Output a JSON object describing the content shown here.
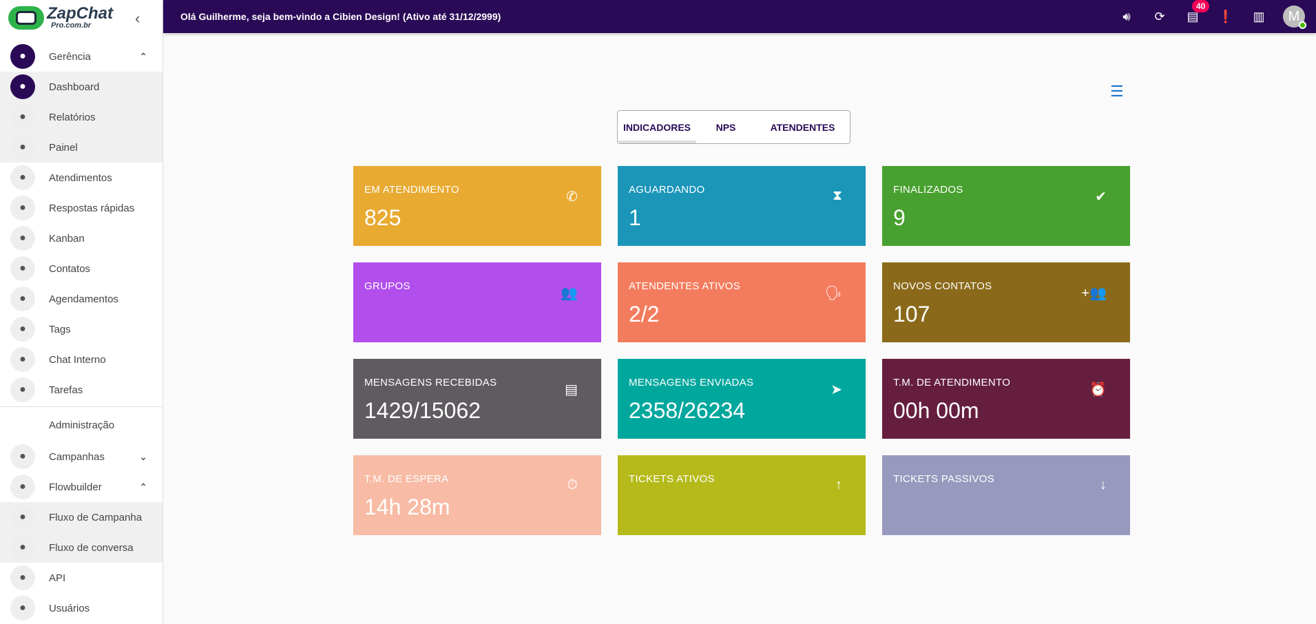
{
  "logo": {
    "name": "ZapChat",
    "sub": "Pro.com.br"
  },
  "sidebar": {
    "items": [
      {
        "label": "Gerência",
        "icon": "dashboard-icon",
        "chev": "⌃",
        "type": "top",
        "dark": true
      },
      {
        "label": "Dashboard",
        "icon": "grid-dashboard-icon",
        "type": "sub",
        "dark": true
      },
      {
        "label": "Relatórios",
        "icon": "document-icon",
        "type": "sub"
      },
      {
        "label": "Painel",
        "icon": "table-icon",
        "type": "sub"
      },
      {
        "label": "Atendimentos",
        "icon": "whatsapp-icon"
      },
      {
        "label": "Respostas rápidas",
        "icon": "flash-icon"
      },
      {
        "label": "Kanban",
        "icon": "kanban-icon"
      },
      {
        "label": "Contatos",
        "icon": "contacts-icon"
      },
      {
        "label": "Agendamentos",
        "icon": "clock-icon"
      },
      {
        "label": "Tags",
        "icon": "tag-icon"
      },
      {
        "label": "Chat Interno",
        "icon": "forum-icon"
      },
      {
        "label": "Tarefas",
        "icon": "calendar-check-icon"
      }
    ],
    "section": "Administração",
    "admin_items": [
      {
        "label": "Campanhas",
        "icon": "calendar-check-icon",
        "chev": "⌄"
      },
      {
        "label": "Flowbuilder",
        "icon": "webhook-icon",
        "chev": "⌃"
      },
      {
        "label": "Fluxo de Campanha",
        "icon": "calendar-check-icon",
        "type": "sub"
      },
      {
        "label": "Fluxo de conversa",
        "icon": "flow-icon",
        "type": "sub"
      },
      {
        "label": "API",
        "icon": "code-icon"
      },
      {
        "label": "Usuários",
        "icon": "users-icon"
      }
    ]
  },
  "header": {
    "welcome": "Olá Guilherme, seja bem-vindo a Cibien Design! (Ativo até 31/12/2999)",
    "notifications": "40",
    "avatar": "M"
  },
  "tabs": [
    {
      "label": "INDICADORES",
      "active": true
    },
    {
      "label": "NPS"
    },
    {
      "label": "ATENDENTES"
    }
  ],
  "cards": [
    {
      "title": "EM ATENDIMENTO",
      "value": "825",
      "color": "#E8AA31",
      "icon": "phone-icon",
      "glyph": "✆"
    },
    {
      "title": "AGUARDANDO",
      "value": "1",
      "color": "#1B96B9",
      "icon": "hourglass-icon",
      "glyph": "⧗"
    },
    {
      "title": "FINALIZADOS",
      "value": "9",
      "color": "#47A02F",
      "icon": "check-circle-icon",
      "glyph": "✔"
    },
    {
      "title": "GRUPOS",
      "value": "",
      "color": "#B14EEC",
      "icon": "groups-icon",
      "glyph": "👥"
    },
    {
      "title": "ATENDENTES ATIVOS",
      "value": "2/2",
      "color": "#F47C5E",
      "icon": "record-voice-icon",
      "glyph": "🗣"
    },
    {
      "title": "NOVOS CONTATOS",
      "value": "107",
      "color": "#8A6A1A",
      "icon": "group-add-icon",
      "glyph": "+👥"
    },
    {
      "title": "MENSAGENS RECEBIDAS",
      "value": "1429/15062",
      "color": "#5F5B60",
      "icon": "message-icon",
      "glyph": "▤"
    },
    {
      "title": "MENSAGENS ENVIADAS",
      "value": "2358/26234",
      "color": "#00A79D",
      "icon": "send-icon",
      "glyph": "➤"
    },
    {
      "title": "T.M. DE ATENDIMENTO",
      "value": "00h 00m",
      "color": "#651E3E",
      "icon": "alarm-icon",
      "glyph": "⏰"
    },
    {
      "title": "T.M. DE ESPERA",
      "value": "14h 28m",
      "color": "#F8BBA5",
      "icon": "timer-icon",
      "glyph": "⏱"
    },
    {
      "title": "TICKETS ATIVOS",
      "value": "",
      "color": "#B5BA1A",
      "icon": "arrow-up-icon",
      "glyph": "↑"
    },
    {
      "title": "TICKETS PASSIVOS",
      "value": "",
      "color": "#9899BE",
      "icon": "arrow-down-icon",
      "glyph": "↓"
    }
  ]
}
